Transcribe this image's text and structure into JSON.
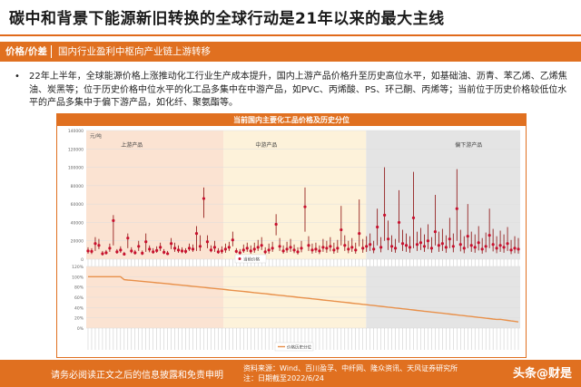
{
  "header": {
    "title": "碳中和背景下能源新旧转换的全球行动是21年以来的最大主线"
  },
  "section": {
    "label": "价格/价差",
    "text": "国内行业盈利中枢向产业链上游转移"
  },
  "bullet": {
    "text": "22年上半年，全球能源价格上涨推动化工行业生产成本提升，国内上游产品价格升至历史高位水平，如基础油、沥青、苯乙烯、乙烯焦油、炭黑等；位于历史价格中位水平的化工品多集中在中游产品，如PVC、丙烯酸、PS、环己酮、丙烯等；当前位于历史价格较低位水平的产品多集中于偏下游产品，如化纤、聚氨酯等。"
  },
  "chart_data": [
    {
      "type": "scatter",
      "title": "当前国内主要化工品价格及历史分位",
      "ylabel": "元/吨",
      "ylim": [
        0,
        140000
      ],
      "yticks": [
        0,
        20000,
        40000,
        60000,
        80000,
        100000,
        120000,
        140000
      ],
      "regions": [
        "上游产品",
        "中游产品",
        "偏下游产品"
      ],
      "legend": "当前价格",
      "n": 120,
      "points": [
        [
          9000,
          6000,
          13000
        ],
        [
          8500,
          5500,
          12000
        ],
        [
          17000,
          9000,
          24000
        ],
        [
          15000,
          11000,
          22000
        ],
        [
          6000,
          4000,
          9000
        ],
        [
          7000,
          5000,
          10000
        ],
        [
          12000,
          8000,
          17000
        ],
        [
          42000,
          15000,
          48000
        ],
        [
          8000,
          6000,
          11000
        ],
        [
          10000,
          7000,
          14000
        ],
        [
          5500,
          4000,
          8000
        ],
        [
          23000,
          12000,
          28000
        ],
        [
          9000,
          6500,
          13000
        ],
        [
          7000,
          5000,
          10000
        ],
        [
          14000,
          9000,
          20000
        ],
        [
          6500,
          4500,
          9500
        ],
        [
          19000,
          8000,
          28000
        ],
        [
          11000,
          7500,
          15000
        ],
        [
          8000,
          6000,
          12000
        ],
        [
          9500,
          7000,
          14000
        ],
        [
          13000,
          9000,
          18000
        ],
        [
          7500,
          5500,
          11000
        ],
        [
          6000,
          4500,
          9000
        ],
        [
          17000,
          11000,
          23000
        ],
        [
          12000,
          8000,
          18000
        ],
        [
          10000,
          7000,
          15000
        ],
        [
          9000,
          6500,
          13000
        ],
        [
          8500,
          6000,
          12000
        ],
        [
          12000,
          9000,
          17000
        ],
        [
          11000,
          8000,
          16000
        ],
        [
          28000,
          9000,
          36000
        ],
        [
          14000,
          9000,
          26000
        ],
        [
          66000,
          45000,
          78000
        ],
        [
          19000,
          12000,
          26000
        ],
        [
          10000,
          7500,
          15000
        ],
        [
          13000,
          8000,
          20000
        ],
        [
          8000,
          6000,
          12000
        ],
        [
          9000,
          6000,
          14000
        ],
        [
          11000,
          7000,
          17000
        ],
        [
          13000,
          9000,
          19000
        ],
        [
          21000,
          14000,
          30000
        ],
        [
          8500,
          6500,
          12000
        ],
        [
          7000,
          5000,
          11000
        ],
        [
          10000,
          7000,
          16000
        ],
        [
          12000,
          8000,
          18000
        ],
        [
          9000,
          6000,
          15000
        ],
        [
          11000,
          7000,
          18000
        ],
        [
          13000,
          9000,
          21000
        ],
        [
          15000,
          10000,
          24000
        ],
        [
          8000,
          5500,
          13000
        ],
        [
          10000,
          6000,
          17000
        ],
        [
          12000,
          8000,
          19000
        ],
        [
          38000,
          26000,
          49000
        ],
        [
          14000,
          9000,
          23000
        ],
        [
          9000,
          6000,
          15000
        ],
        [
          11000,
          7000,
          19000
        ],
        [
          13000,
          8000,
          22000
        ],
        [
          10000,
          6500,
          16000
        ],
        [
          8000,
          5000,
          13000
        ],
        [
          12000,
          7500,
          20000
        ],
        [
          57000,
          30000,
          78000
        ],
        [
          15000,
          9000,
          25000
        ],
        [
          10000,
          6000,
          17000
        ],
        [
          11000,
          7000,
          18000
        ],
        [
          9000,
          5500,
          15000
        ],
        [
          13000,
          8000,
          22000
        ],
        [
          12000,
          7000,
          20000
        ],
        [
          14000,
          8500,
          24000
        ],
        [
          10000,
          6000,
          18000
        ],
        [
          12000,
          7000,
          21000
        ],
        [
          32000,
          15000,
          58000
        ],
        [
          15000,
          9000,
          26000
        ],
        [
          11000,
          6500,
          20000
        ],
        [
          13000,
          8000,
          23000
        ],
        [
          10000,
          6000,
          18000
        ],
        [
          28000,
          14000,
          65000
        ],
        [
          12000,
          7000,
          22000
        ],
        [
          14000,
          8000,
          25000
        ],
        [
          16000,
          9000,
          28000
        ],
        [
          11000,
          6500,
          20000
        ],
        [
          35000,
          15000,
          55000
        ],
        [
          13000,
          7500,
          24000
        ],
        [
          48000,
          20000,
          100000
        ],
        [
          22000,
          10000,
          42000
        ],
        [
          14000,
          8000,
          26000
        ],
        [
          12000,
          7000,
          22000
        ],
        [
          40000,
          18000,
          75000
        ],
        [
          17000,
          9000,
          32000
        ],
        [
          15000,
          8000,
          28000
        ],
        [
          13000,
          7000,
          25000
        ],
        [
          45000,
          12000,
          95000
        ],
        [
          16000,
          9000,
          30000
        ],
        [
          18000,
          10000,
          34000
        ],
        [
          14000,
          8000,
          27000
        ],
        [
          20000,
          11000,
          38000
        ],
        [
          12000,
          7000,
          24000
        ],
        [
          30000,
          15000,
          70000
        ],
        [
          15000,
          8000,
          30000
        ],
        [
          17000,
          9000,
          33000
        ],
        [
          13000,
          7000,
          26000
        ],
        [
          22000,
          12000,
          45000
        ],
        [
          14000,
          7500,
          28000
        ],
        [
          55000,
          20000,
          98000
        ],
        [
          16000,
          8500,
          32000
        ],
        [
          12000,
          6500,
          25000
        ],
        [
          25000,
          12000,
          60000
        ],
        [
          15000,
          8000,
          30000
        ],
        [
          13000,
          7000,
          27000
        ],
        [
          18000,
          9500,
          36000
        ],
        [
          11000,
          6000,
          23000
        ],
        [
          14000,
          7500,
          29000
        ],
        [
          26000,
          12000,
          55000
        ],
        [
          16000,
          8500,
          33000
        ],
        [
          12000,
          6500,
          25000
        ],
        [
          15000,
          8000,
          31000
        ],
        [
          13000,
          7000,
          27000
        ],
        [
          17000,
          9000,
          35000
        ],
        [
          10000,
          5500,
          21000
        ],
        [
          12000,
          6500,
          25000
        ],
        [
          11000,
          6000,
          23000
        ]
      ]
    },
    {
      "type": "area",
      "legend": "价格历史分位",
      "ylim": [
        0,
        1.2
      ],
      "yticks": [
        "0%",
        "20%",
        "40%",
        "60%",
        "80%",
        "100%",
        "120%"
      ],
      "regions": [
        "上游产品",
        "中游产品",
        "偏下游产品"
      ],
      "n": 120,
      "start": 1.0,
      "end": 0.12
    }
  ],
  "footer": {
    "disclaimer": "请务必阅读正文之后的信息披露和免责申明",
    "source": "资料来源：Wind、百川盈孚、中纤网、隆众资讯、天风证券研究所",
    "date": "注：日期截至2022/6/24",
    "logo": "头条@财是"
  },
  "colors": {
    "accent": "#e07020",
    "upstream_bg": "#fbe3d2",
    "midstream_bg": "#fdf2da",
    "downstream_bg": "#e4e4e4",
    "point": "#c8102e",
    "line": "#e8904a"
  }
}
